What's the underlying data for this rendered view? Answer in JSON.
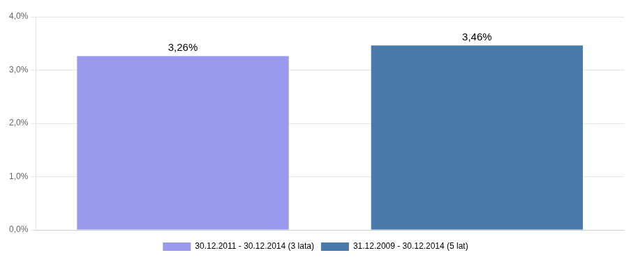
{
  "chart_data": {
    "type": "bar",
    "categories": [
      "30.12.2011 - 30.12.2014 (3 lata)",
      "31.12.2009 - 30.12.2014 (5 lat)"
    ],
    "values": [
      3.26,
      3.46
    ],
    "value_labels": [
      "3,26%",
      "3,46%"
    ],
    "colors": [
      "#9999ee",
      "#4a7aaa"
    ],
    "ylim": [
      0.0,
      4.0
    ],
    "yticks": [
      {
        "value": 0.0,
        "label": "0,0%"
      },
      {
        "value": 1.0,
        "label": "1,0%"
      },
      {
        "value": 2.0,
        "label": "2,0%"
      },
      {
        "value": 3.0,
        "label": "3,0%"
      },
      {
        "value": 4.0,
        "label": "4,0%"
      }
    ],
    "grid": true,
    "legend": "bottom",
    "data_labels": true,
    "tick_labels": "y"
  }
}
